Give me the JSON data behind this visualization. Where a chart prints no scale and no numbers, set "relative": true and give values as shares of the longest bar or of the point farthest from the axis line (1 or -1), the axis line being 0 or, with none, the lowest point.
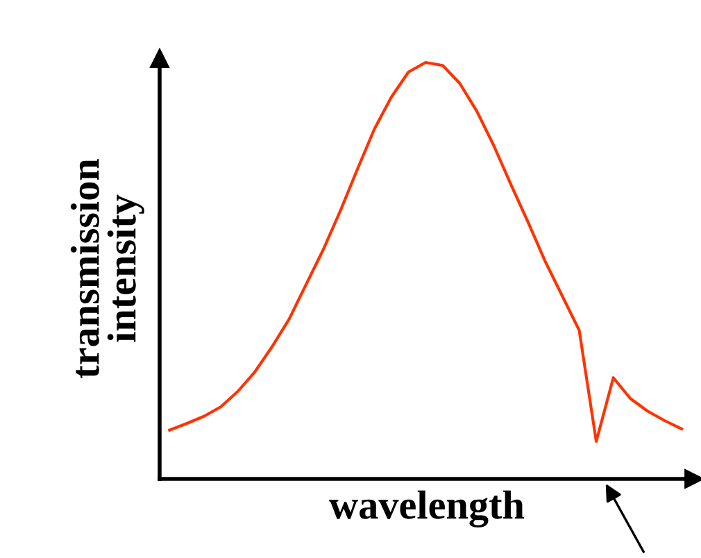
{
  "chart_data": {
    "type": "line",
    "relative": true,
    "xlabel": "wavelength",
    "ylabel": "transmission\nintensity",
    "categories": [
      null,
      null,
      null,
      null,
      null,
      null,
      null,
      null,
      null,
      null,
      null,
      null,
      null,
      null,
      null,
      null,
      null,
      null,
      null,
      null,
      null,
      null,
      null,
      null,
      null,
      null,
      null,
      null,
      null,
      null,
      null
    ],
    "series": [
      {
        "color": "#ff3300",
        "values": [
          0.117,
          0.133,
          0.15,
          0.173,
          0.21,
          0.257,
          0.317,
          0.383,
          0.467,
          0.55,
          0.643,
          0.743,
          0.84,
          0.917,
          0.977,
          1,
          0.993,
          0.95,
          0.883,
          0.8,
          0.707,
          0.617,
          0.523,
          0.44,
          0.357,
          0.09,
          0.243,
          0.193,
          0.163,
          0.14,
          0.12
        ]
      }
    ],
    "legend": false,
    "marker": "none",
    "line_style": "solid"
  }
}
